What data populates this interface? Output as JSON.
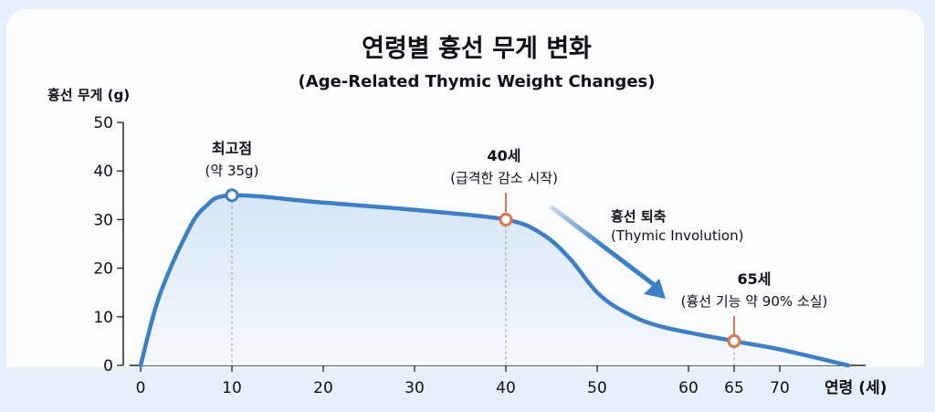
{
  "chart_data": {
    "type": "area",
    "title": "연령별 흉선 무게 변화",
    "subtitle": "(Age-Related Thymic Weight Changes)",
    "xlabel": "연령 (세)",
    "ylabel": "흉선 무게 (g)",
    "xlim": [
      0,
      78
    ],
    "ylim": [
      0,
      50
    ],
    "x_ticks": [
      0,
      10,
      20,
      30,
      40,
      50,
      60,
      65,
      70
    ],
    "y_ticks": [
      0,
      10,
      20,
      30,
      40,
      50
    ],
    "grid": false,
    "series": [
      {
        "x": [
          0,
          2,
          5,
          7,
          10,
          20,
          30,
          40,
          44,
          47,
          50,
          53,
          57,
          65,
          70,
          77.5
        ],
        "y": [
          0,
          14,
          27,
          32.5,
          35,
          33.5,
          32,
          30,
          27,
          22,
          15,
          11,
          8,
          5,
          3.3,
          0
        ]
      }
    ],
    "annotations": [
      {
        "x": 10,
        "y": 35,
        "title": "최고점",
        "text": "(약 35g)",
        "color": "#3b7fc8"
      },
      {
        "x": 40,
        "y": 30,
        "title": "40세",
        "text": "(급격한 감소 시작)",
        "color": "#d9774f"
      },
      {
        "x": 65,
        "y": 5,
        "title": "65세",
        "text": "(흉선 기능 약 90% 소실)",
        "color": "#d9774f"
      }
    ],
    "arrow_label": {
      "title": "흉선 퇴축",
      "text": "(Thymic Involution)"
    },
    "colors": {
      "line": "#3b7fc8",
      "marker_orange": "#d9774f",
      "fill": "#dde9f6",
      "background": "#e6f0fa"
    }
  }
}
